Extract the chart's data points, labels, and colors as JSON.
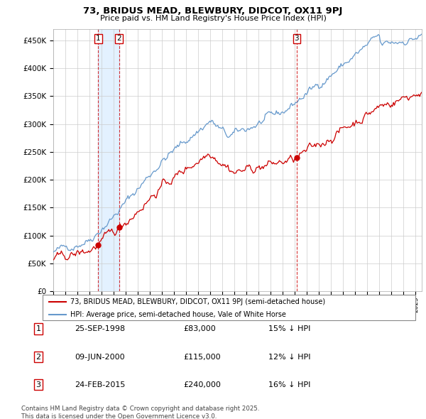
{
  "title": "73, BRIDUS MEAD, BLEWBURY, DIDCOT, OX11 9PJ",
  "subtitle": "Price paid vs. HM Land Registry's House Price Index (HPI)",
  "sale_dates_float": [
    1998.729,
    2000.44,
    2015.146
  ],
  "sale_prices": [
    83000,
    115000,
    240000
  ],
  "sale_labels": [
    "1",
    "2",
    "3"
  ],
  "price_color": "#cc0000",
  "hpi_color": "#6699cc",
  "hpi_fill_color": "#ddeeff",
  "legend_price_label": "73, BRIDUS MEAD, BLEWBURY, DIDCOT, OX11 9PJ (semi-detached house)",
  "legend_hpi_label": "HPI: Average price, semi-detached house, Vale of White Horse",
  "footer": "Contains HM Land Registry data © Crown copyright and database right 2025.\nThis data is licensed under the Open Government Licence v3.0.",
  "ylim": [
    0,
    470000
  ],
  "yticks": [
    0,
    50000,
    100000,
    150000,
    200000,
    250000,
    300000,
    350000,
    400000,
    450000
  ],
  "xlim": [
    1995,
    2025.5
  ],
  "table_entries": [
    [
      "1",
      "25-SEP-1998",
      "£83,000",
      "15% ↓ HPI"
    ],
    [
      "2",
      "09-JUN-2000",
      "£115,000",
      "12% ↓ HPI"
    ],
    [
      "3",
      "24-FEB-2015",
      "£240,000",
      "16% ↓ HPI"
    ]
  ],
  "background_color": "#ffffff",
  "grid_color": "#cccccc"
}
